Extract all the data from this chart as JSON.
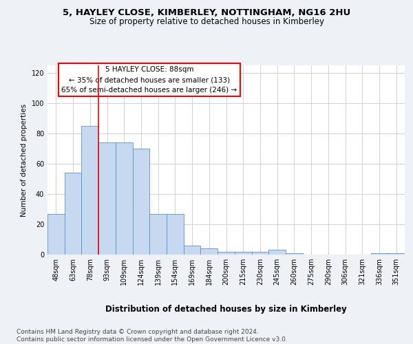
{
  "title1": "5, HAYLEY CLOSE, KIMBERLEY, NOTTINGHAM, NG16 2HU",
  "title2": "Size of property relative to detached houses in Kimberley",
  "xlabel": "Distribution of detached houses by size in Kimberley",
  "ylabel": "Number of detached properties",
  "categories": [
    "48sqm",
    "63sqm",
    "78sqm",
    "93sqm",
    "109sqm",
    "124sqm",
    "139sqm",
    "154sqm",
    "169sqm",
    "184sqm",
    "200sqm",
    "215sqm",
    "230sqm",
    "245sqm",
    "260sqm",
    "275sqm",
    "290sqm",
    "306sqm",
    "321sqm",
    "336sqm",
    "351sqm"
  ],
  "values": [
    27,
    54,
    85,
    74,
    74,
    70,
    27,
    27,
    6,
    4,
    2,
    2,
    2,
    3,
    1,
    0,
    0,
    0,
    0,
    1,
    1
  ],
  "bar_color": "#c6d9f0",
  "bar_edge_color": "#6090c0",
  "grid_color": "#d0d0d0",
  "vline_color": "red",
  "vline_x": 2.5,
  "annotation_text": "5 HAYLEY CLOSE: 88sqm\n← 35% of detached houses are smaller (133)\n65% of semi-detached houses are larger (246) →",
  "annotation_box_color": "white",
  "annotation_box_edge": "red",
  "ylim": [
    0,
    125
  ],
  "yticks": [
    0,
    20,
    40,
    60,
    80,
    100,
    120
  ],
  "footer": "Contains HM Land Registry data © Crown copyright and database right 2024.\nContains public sector information licensed under the Open Government Licence v3.0.",
  "bg_color": "#eef2f7",
  "plot_bg_color": "#ffffff",
  "title1_fontsize": 9.5,
  "title2_fontsize": 8.5,
  "xlabel_fontsize": 8.5,
  "ylabel_fontsize": 7.5,
  "tick_fontsize": 7,
  "annotation_fontsize": 7.5,
  "footer_fontsize": 6.5
}
